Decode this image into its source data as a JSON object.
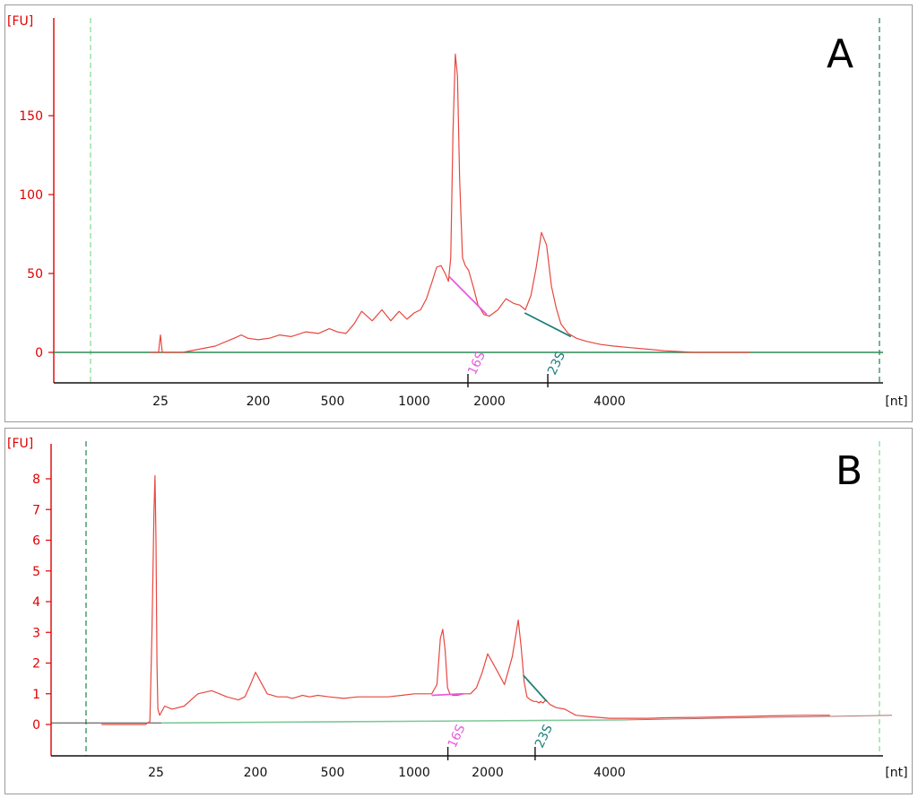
{
  "colors": {
    "trace": "#e8473f",
    "axis": "#e00000",
    "baseline": "#2e8b57",
    "lower_marker_line": "#88dd99",
    "upper_marker_line": "#2e8b57",
    "marker_16S": "#e85ce0",
    "marker_23S": "#1e7f7a"
  },
  "chart_data": [
    {
      "type": "line",
      "panel_label": "A",
      "yunit": "[FU]",
      "xunit": "[nt]",
      "ylim": [
        -20,
        210
      ],
      "yticks": [
        0,
        50,
        100,
        150
      ],
      "x_scale": "ladder",
      "x_tick_labels": [
        "25",
        "200",
        "500",
        "1000",
        "2000",
        "4000"
      ],
      "ladder_markers": [
        25,
        200,
        500,
        1000,
        2000,
        4000
      ],
      "grid": false,
      "series": [
        {
          "x": [
            20,
            24,
            24.5,
            25,
            25.5,
            26,
            40,
            80,
            120,
            140,
            160,
            200,
            230,
            260,
            300,
            360,
            420,
            480,
            520,
            560,
            600,
            640,
            700,
            760,
            820,
            880,
            940,
            1000,
            1060,
            1120,
            1180,
            1230,
            1280,
            1330,
            1370,
            1400,
            1430,
            1460,
            1490,
            1520,
            1560,
            1600,
            1650,
            1720,
            1800,
            1900,
            2000,
            2100,
            2200,
            2300,
            2380,
            2460,
            2540,
            2620,
            2700,
            2780,
            2860,
            2940,
            3020,
            3150,
            3300,
            3500,
            3800,
            4100,
            4500,
            5000,
            5500,
            6500,
            7500,
            9000
          ],
          "y": [
            0,
            0,
            6,
            11,
            5,
            0,
            0,
            4,
            9,
            11,
            9,
            8,
            9,
            11,
            10,
            13,
            12,
            15,
            13,
            12,
            18,
            26,
            20,
            27,
            20,
            26,
            21,
            25,
            27,
            34,
            45,
            54,
            55,
            50,
            45,
            60,
            140,
            189,
            175,
            110,
            60,
            55,
            52,
            42,
            30,
            24,
            23,
            27,
            34,
            31,
            30,
            27,
            36,
            54,
            76,
            68,
            42,
            28,
            18,
            12,
            9,
            7,
            5,
            4,
            3,
            2,
            1,
            0,
            0,
            0
          ]
        }
      ],
      "markers": [
        {
          "label": "16S",
          "x_start": 1380,
          "y_start": 48,
          "x_end": 1950,
          "y_end": 24
        },
        {
          "label": "23S",
          "x_start": 2450,
          "y_start": 25,
          "x_end": 3200,
          "y_end": 10
        }
      ]
    },
    {
      "type": "line",
      "panel_label": "B",
      "yunit": "[FU]",
      "xunit": "[nt]",
      "ylim": [
        -0.6,
        8.8
      ],
      "yticks": [
        0,
        1,
        2,
        3,
        4,
        5,
        6,
        7,
        8
      ],
      "x_scale": "ladder",
      "x_tick_labels": [
        "25",
        "200",
        "500",
        "1000",
        "2000",
        "4000"
      ],
      "ladder_markers": [
        25,
        200,
        500,
        1000,
        2000,
        4000
      ],
      "grid": false,
      "series": [
        {
          "x": [
            8,
            15,
            20,
            22,
            23,
            24,
            24.5,
            25,
            25.5,
            26,
            27,
            30,
            35,
            45,
            60,
            80,
            110,
            140,
            160,
            180,
            200,
            230,
            260,
            290,
            310,
            330,
            350,
            380,
            420,
            480,
            550,
            620,
            700,
            800,
            900,
            1000,
            1100,
            1180,
            1240,
            1280,
            1310,
            1340,
            1370,
            1400,
            1440,
            1500,
            1600,
            1700,
            1800,
            1900,
            2000,
            2100,
            2200,
            2300,
            2380,
            2420,
            2460,
            2500,
            2550,
            2600,
            2640,
            2680,
            2700,
            2740,
            2780,
            2850,
            2950,
            3100,
            3300,
            3600,
            4000,
            4500,
            5000,
            5500,
            6500,
            8000,
            10000,
            12000,
            14000
          ],
          "y": [
            0,
            0,
            0,
            0.1,
            3,
            7,
            8.1,
            6,
            2,
            0.5,
            0.3,
            0.6,
            0.5,
            0.6,
            1,
            1.1,
            0.9,
            0.8,
            0.9,
            1.3,
            1.7,
            1.0,
            0.9,
            0.9,
            0.85,
            0.9,
            0.95,
            0.9,
            0.95,
            0.9,
            0.85,
            0.9,
            0.9,
            0.9,
            0.95,
            1.0,
            1.0,
            1.0,
            1.3,
            2.8,
            3.1,
            2.4,
            1.2,
            1.0,
            0.95,
            0.95,
            1.0,
            1.0,
            1.2,
            1.7,
            2.3,
            1.8,
            1.3,
            2.2,
            3.4,
            2.5,
            1.4,
            0.9,
            0.8,
            0.75,
            0.75,
            0.7,
            0.75,
            0.7,
            0.8,
            0.65,
            0.55,
            0.5,
            0.3,
            0.25,
            0.2,
            0.2,
            0.2,
            0.22,
            0.23,
            0.25,
            0.28,
            0.3,
            0.3
          ]
        }
      ],
      "markers": [
        {
          "label": "16S",
          "x_start": 1180,
          "y_start": 0.95,
          "x_end": 1600,
          "y_end": 1.0
        },
        {
          "label": "23S",
          "x_start": 2450,
          "y_start": 1.6,
          "x_end": 2800,
          "y_end": 0.75
        }
      ]
    }
  ]
}
